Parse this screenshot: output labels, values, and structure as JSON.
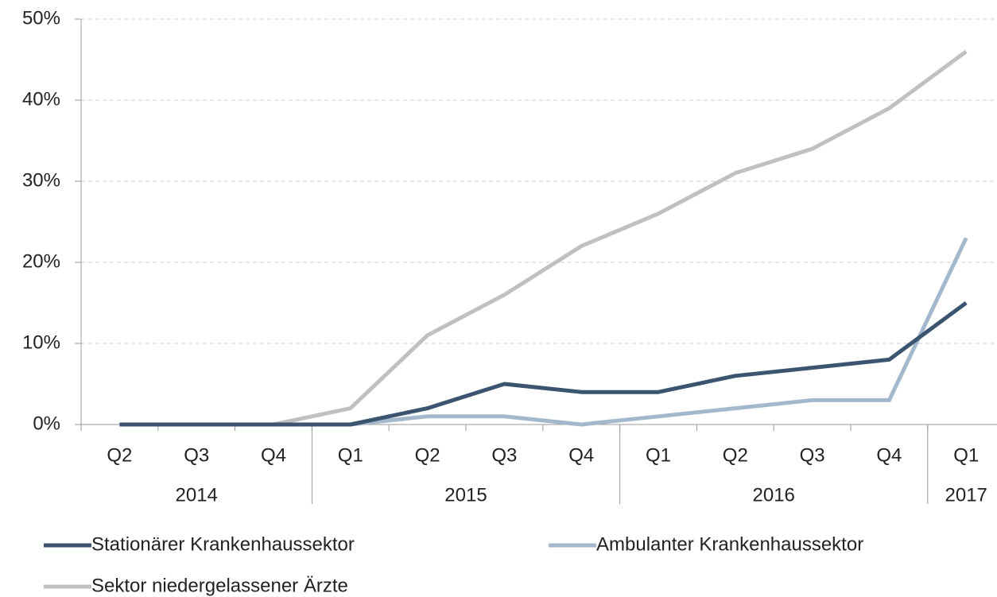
{
  "chart_data": {
    "type": "line",
    "groups": [
      {
        "label": "2014",
        "quarters": [
          "Q2",
          "Q3",
          "Q4"
        ]
      },
      {
        "label": "2015",
        "quarters": [
          "Q1",
          "Q2",
          "Q3",
          "Q4"
        ]
      },
      {
        "label": "2016",
        "quarters": [
          "Q1",
          "Q2",
          "Q3",
          "Q4"
        ]
      },
      {
        "label": "2017",
        "quarters": [
          "Q1"
        ]
      }
    ],
    "series": [
      {
        "name": "Stationärer Krankenhaussektor",
        "color": "#3b5470",
        "values": [
          0,
          0,
          0,
          0,
          2,
          5,
          4,
          4,
          6,
          7,
          8,
          15
        ]
      },
      {
        "name": "Ambulanter Krankenhaussektor",
        "color": "#a3b8cc",
        "values": [
          0,
          0,
          0,
          0,
          1,
          1,
          0,
          1,
          2,
          3,
          3,
          23
        ]
      },
      {
        "name": "Sektor niedergelassener Ärzte",
        "color": "#c0c0c0",
        "values": [
          0,
          0,
          0,
          2,
          11,
          16,
          22,
          26,
          31,
          34,
          39,
          46
        ]
      }
    ],
    "ylim": [
      0,
      50
    ],
    "yticks": [
      {
        "value": 0,
        "label": "0%"
      },
      {
        "value": 10,
        "label": "10%"
      },
      {
        "value": 20,
        "label": "20%"
      },
      {
        "value": 30,
        "label": "30%"
      },
      {
        "value": 40,
        "label": "40%"
      },
      {
        "value": 50,
        "label": "50%"
      }
    ],
    "grid": true
  }
}
